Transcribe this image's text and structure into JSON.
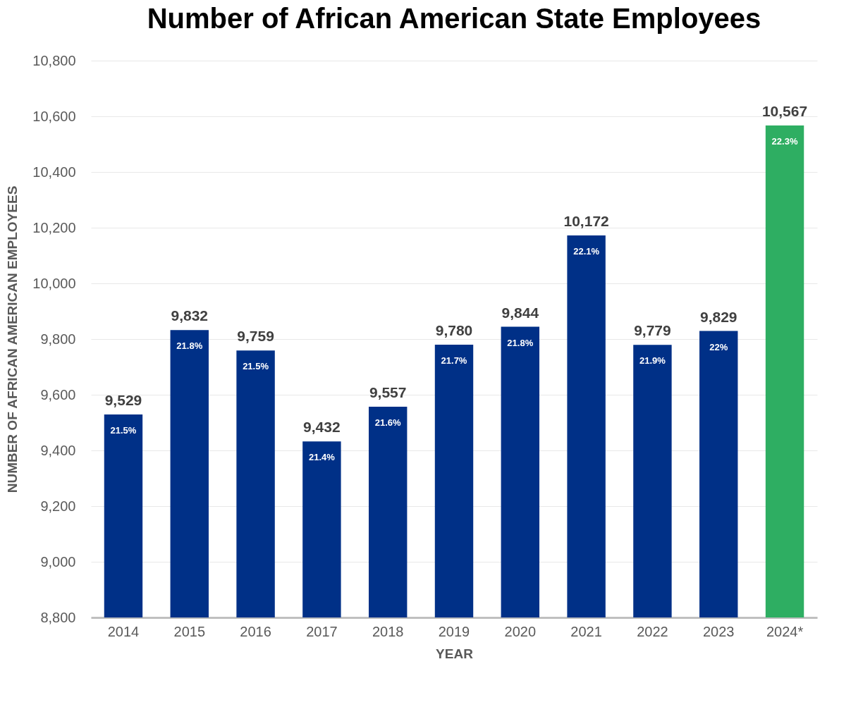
{
  "chart_data": {
    "type": "bar",
    "title": "Number of African American State Employees",
    "xlabel": "YEAR",
    "ylabel": "NUMBER OF AFRICAN AMERICAN EMPLOYEES",
    "categories": [
      "2014",
      "2015",
      "2016",
      "2017",
      "2018",
      "2019",
      "2020",
      "2021",
      "2022",
      "2023",
      "2024*"
    ],
    "values": [
      9529,
      9832,
      9759,
      9432,
      9557,
      9780,
      9844,
      10172,
      9779,
      9829,
      10567
    ],
    "value_labels": [
      "9,529",
      "9,832",
      "9,759",
      "9,432",
      "9,557",
      "9,780",
      "9,844",
      "10,172",
      "9,779",
      "9,829",
      "10,567"
    ],
    "colors": [
      "#003087",
      "#003087",
      "#003087",
      "#003087",
      "#003087",
      "#003087",
      "#003087",
      "#003087",
      "#003087",
      "#003087",
      "#2eae62"
    ],
    "ylim": [
      8800,
      10800
    ],
    "yticks": [
      {
        "value": 8800,
        "label": "8,800"
      },
      {
        "value": 9000,
        "label": "9,000"
      },
      {
        "value": 9200,
        "label": "9,200"
      },
      {
        "value": 9400,
        "label": "9,400"
      },
      {
        "value": 9600,
        "label": "9,600"
      },
      {
        "value": 9800,
        "label": "9,800"
      },
      {
        "value": 10000,
        "label": "10,000"
      },
      {
        "value": 10200,
        "label": "10,200"
      },
      {
        "value": 10400,
        "label": "10,400"
      },
      {
        "value": 10600,
        "label": "10,600"
      },
      {
        "value": 10800,
        "label": "10,800"
      }
    ],
    "grid": "y",
    "annotations": [
      {
        "text": "21.5%",
        "x": "2014",
        "y": 9529
      },
      {
        "text": "21.8%",
        "x": "2015",
        "y": 9832
      },
      {
        "text": "21.5%",
        "x": "2016",
        "y": 9759
      },
      {
        "text": "21.4%",
        "x": "2017",
        "y": 9432
      },
      {
        "text": "21.6%",
        "x": "2018",
        "y": 9557
      },
      {
        "text": "21.7%",
        "x": "2019",
        "y": 9780
      },
      {
        "text": "21.8%",
        "x": "2020",
        "y": 9844
      },
      {
        "text": "22.1%",
        "x": "2021",
        "y": 10172
      },
      {
        "text": "21.9%",
        "x": "2022",
        "y": 9779
      },
      {
        "text": "22%",
        "x": "2023",
        "y": 9829
      },
      {
        "text": "22.3%",
        "x": "2024*",
        "y": 10567
      }
    ]
  }
}
